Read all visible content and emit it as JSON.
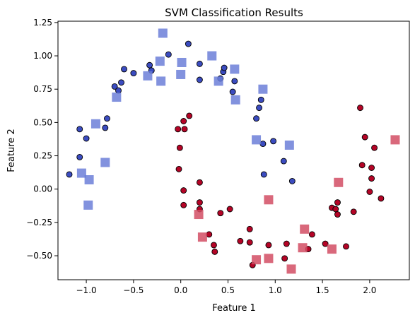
{
  "chart_data": {
    "type": "scatter",
    "title": "SVM Classification Results",
    "xlabel": "Feature 1",
    "ylabel": "Feature 2",
    "xlim": [
      -1.3,
      2.42
    ],
    "ylim": [
      -0.68,
      1.26
    ],
    "xticks": [
      -1.0,
      -0.5,
      0.0,
      0.5,
      1.0,
      1.5,
      2.0
    ],
    "xtick_labels": [
      "−1.0",
      "−0.5",
      "0.0",
      "0.5",
      "1.0",
      "1.5",
      "2.0"
    ],
    "yticks": [
      -0.5,
      -0.25,
      0.0,
      0.25,
      0.5,
      0.75,
      1.0,
      1.25
    ],
    "ytick_labels": [
      "−0.50",
      "−0.25",
      "0.00",
      "0.25",
      "0.50",
      "0.75",
      "1.00",
      "1.25"
    ],
    "grid": false,
    "colors": {
      "class0_circle": "#3b4cc0",
      "class1_circle": "#b40426",
      "class0_square": "#6c7fd8",
      "class1_square": "#d24d64",
      "edge": "#000000"
    },
    "series": [
      {
        "marker": "circle",
        "class": 0,
        "points": [
          [
            -1.18,
            0.11
          ],
          [
            -1.07,
            0.45
          ],
          [
            -1.07,
            0.24
          ],
          [
            -1.0,
            0.38
          ],
          [
            -0.8,
            0.46
          ],
          [
            -0.78,
            0.53
          ],
          [
            -0.7,
            0.77
          ],
          [
            -0.66,
            0.74
          ],
          [
            -0.63,
            0.8
          ],
          [
            -0.6,
            0.9
          ],
          [
            -0.5,
            0.87
          ],
          [
            -0.33,
            0.93
          ],
          [
            -0.31,
            0.89
          ],
          [
            -0.13,
            1.01
          ],
          [
            0.08,
            1.09
          ],
          [
            0.2,
            0.94
          ],
          [
            0.2,
            0.82
          ],
          [
            0.42,
            0.83
          ],
          [
            0.45,
            0.88
          ],
          [
            0.46,
            0.91
          ],
          [
            0.55,
            0.73
          ],
          [
            0.57,
            0.81
          ],
          [
            0.8,
            0.53
          ],
          [
            0.83,
            0.61
          ],
          [
            0.85,
            0.67
          ],
          [
            0.87,
            0.34
          ],
          [
            0.88,
            0.11
          ],
          [
            0.98,
            0.36
          ],
          [
            1.09,
            0.21
          ],
          [
            1.18,
            0.06
          ]
        ]
      },
      {
        "marker": "circle",
        "class": 1,
        "points": [
          [
            -0.03,
            0.45
          ],
          [
            -0.01,
            0.31
          ],
          [
            -0.02,
            0.15
          ],
          [
            0.03,
            0.51
          ],
          [
            0.04,
            0.45
          ],
          [
            0.09,
            0.55
          ],
          [
            0.03,
            -0.01
          ],
          [
            0.03,
            -0.12
          ],
          [
            0.2,
            0.05
          ],
          [
            0.2,
            -0.1
          ],
          [
            0.2,
            -0.15
          ],
          [
            0.3,
            -0.34
          ],
          [
            0.35,
            -0.42
          ],
          [
            0.36,
            -0.47
          ],
          [
            0.42,
            -0.18
          ],
          [
            0.52,
            -0.15
          ],
          [
            0.63,
            -0.39
          ],
          [
            0.73,
            -0.3
          ],
          [
            0.73,
            -0.4
          ],
          [
            0.76,
            -0.57
          ],
          [
            0.93,
            -0.42
          ],
          [
            1.1,
            -0.52
          ],
          [
            1.12,
            -0.41
          ],
          [
            1.35,
            -0.45
          ],
          [
            1.39,
            -0.34
          ],
          [
            1.53,
            -0.41
          ],
          [
            1.6,
            -0.14
          ],
          [
            1.64,
            -0.15
          ],
          [
            1.66,
            -0.1
          ],
          [
            1.66,
            -0.19
          ],
          [
            1.75,
            -0.43
          ],
          [
            1.83,
            -0.17
          ],
          [
            1.9,
            0.61
          ],
          [
            1.92,
            0.18
          ],
          [
            1.95,
            0.39
          ],
          [
            2.0,
            -0.02
          ],
          [
            2.02,
            0.08
          ],
          [
            2.02,
            0.16
          ],
          [
            2.05,
            0.31
          ],
          [
            2.12,
            -0.07
          ]
        ]
      },
      {
        "marker": "square",
        "class": 0,
        "points": [
          [
            -1.05,
            0.12
          ],
          [
            -0.97,
            0.07
          ],
          [
            -0.98,
            -0.12
          ],
          [
            -0.9,
            0.49
          ],
          [
            -0.8,
            0.2
          ],
          [
            -0.68,
            0.69
          ],
          [
            -0.35,
            0.85
          ],
          [
            -0.22,
            0.96
          ],
          [
            -0.21,
            0.81
          ],
          [
            -0.19,
            1.17
          ],
          [
            0.0,
            0.86
          ],
          [
            0.01,
            0.95
          ],
          [
            0.33,
            1.0
          ],
          [
            0.4,
            0.81
          ],
          [
            0.57,
            0.9
          ],
          [
            0.58,
            0.67
          ],
          [
            0.8,
            0.37
          ],
          [
            0.87,
            0.75
          ],
          [
            1.15,
            0.33
          ]
        ]
      },
      {
        "marker": "square",
        "class": 1,
        "points": [
          [
            0.19,
            -0.19
          ],
          [
            0.23,
            -0.36
          ],
          [
            0.8,
            -0.53
          ],
          [
            0.93,
            -0.08
          ],
          [
            0.93,
            -0.52
          ],
          [
            1.17,
            -0.6
          ],
          [
            1.29,
            -0.44
          ],
          [
            1.31,
            -0.3
          ],
          [
            1.6,
            -0.45
          ],
          [
            1.67,
            0.05
          ],
          [
            2.27,
            0.37
          ]
        ]
      }
    ]
  }
}
